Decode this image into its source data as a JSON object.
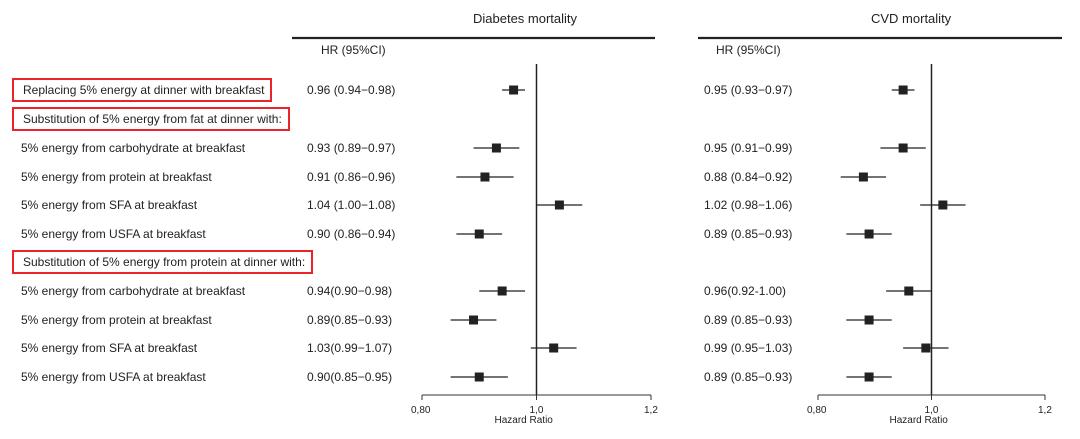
{
  "rows": [
    {
      "label": "Replacing 5% energy at dinner with breakfast",
      "boxed": true
    },
    {
      "label": "Substitution of 5% energy from fat at dinner with:",
      "boxed": true
    },
    {
      "label": "5% energy from carbohydrate at breakfast",
      "boxed": false
    },
    {
      "label": "5% energy from protein at breakfast",
      "boxed": false
    },
    {
      "label": "5% energy from SFA at breakfast",
      "boxed": false
    },
    {
      "label": "5% energy from USFA at breakfast",
      "boxed": false
    },
    {
      "label": "Substitution of 5% energy from protein at dinner with:",
      "boxed": true
    },
    {
      "label": "5% energy from carbohydrate at breakfast",
      "boxed": false
    },
    {
      "label": "5% energy from protein at breakfast",
      "boxed": false
    },
    {
      "label": "5% energy from SFA at breakfast",
      "boxed": false
    },
    {
      "label": "5% energy from USFA at breakfast",
      "boxed": false
    }
  ],
  "chart_data": [
    {
      "type": "forest",
      "title": "Diabetes mortality",
      "column_header": "HR (95%CI)",
      "xlabel": "Hazard Ratio",
      "xlim": [
        0.8,
        1.2
      ],
      "ticks": [
        0.8,
        1.0,
        1.2
      ],
      "tick_labels": [
        "0,80",
        "1,0",
        "1,2"
      ],
      "reference_line": 1.0,
      "rows": [
        {
          "text": "0.96 (0.94−0.98)",
          "hr": 0.96,
          "lo": 0.94,
          "hi": 0.98
        },
        null,
        {
          "text": "0.93 (0.89−0.97)",
          "hr": 0.93,
          "lo": 0.89,
          "hi": 0.97
        },
        {
          "text": "0.91 (0.86−0.96)",
          "hr": 0.91,
          "lo": 0.86,
          "hi": 0.96
        },
        {
          "text": "1.04 (1.00−1.08)",
          "hr": 1.04,
          "lo": 1.0,
          "hi": 1.08
        },
        {
          "text": "0.90 (0.86−0.94)",
          "hr": 0.9,
          "lo": 0.86,
          "hi": 0.94
        },
        null,
        {
          "text": "0.94(0.90−0.98)",
          "hr": 0.94,
          "lo": 0.9,
          "hi": 0.98
        },
        {
          "text": "0.89(0.85−0.93)",
          "hr": 0.89,
          "lo": 0.85,
          "hi": 0.93
        },
        {
          "text": "1.03(0.99−1.07)",
          "hr": 1.03,
          "lo": 0.99,
          "hi": 1.07
        },
        {
          "text": "0.90(0.85−0.95)",
          "hr": 0.9,
          "lo": 0.85,
          "hi": 0.95
        }
      ]
    },
    {
      "type": "forest",
      "title": "CVD mortality",
      "column_header": "HR (95%CI)",
      "xlabel": "Hazard Ratio",
      "xlim": [
        0.8,
        1.2
      ],
      "ticks": [
        0.8,
        1.0,
        1.2
      ],
      "tick_labels": [
        "0,80",
        "1,0",
        "1,2"
      ],
      "reference_line": 1.0,
      "rows": [
        {
          "text": "0.95 (0.93−0.97)",
          "hr": 0.95,
          "lo": 0.93,
          "hi": 0.97
        },
        null,
        {
          "text": "0.95 (0.91−0.99)",
          "hr": 0.95,
          "lo": 0.91,
          "hi": 0.99
        },
        {
          "text": "0.88 (0.84−0.92)",
          "hr": 0.88,
          "lo": 0.84,
          "hi": 0.92
        },
        {
          "text": "1.02 (0.98−1.06)",
          "hr": 1.02,
          "lo": 0.98,
          "hi": 1.06
        },
        {
          "text": "0.89 (0.85−0.93)",
          "hr": 0.89,
          "lo": 0.85,
          "hi": 0.93
        },
        null,
        {
          "text": "0.96(0.92-1.00)",
          "hr": 0.96,
          "lo": 0.92,
          "hi": 1.0
        },
        {
          "text": "0.89 (0.85−0.93)",
          "hr": 0.89,
          "lo": 0.85,
          "hi": 0.93
        },
        {
          "text": "0.99 (0.95−1.03)",
          "hr": 0.99,
          "lo": 0.95,
          "hi": 1.03
        },
        {
          "text": "0.89 (0.85−0.93)",
          "hr": 0.89,
          "lo": 0.85,
          "hi": 0.93
        }
      ]
    }
  ]
}
